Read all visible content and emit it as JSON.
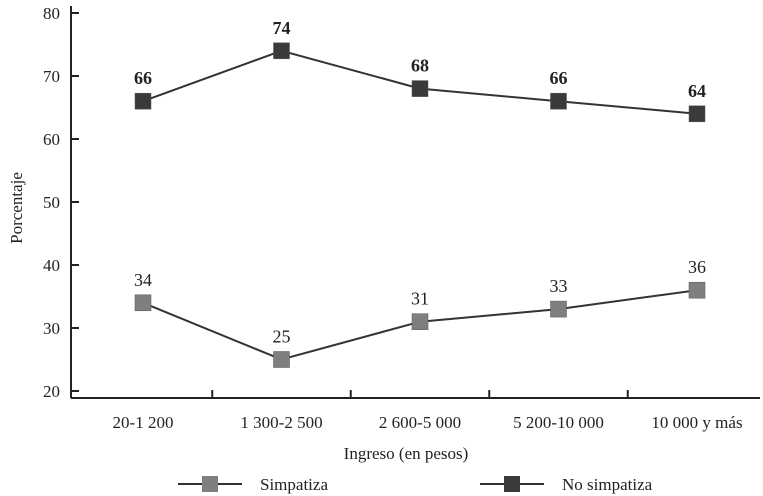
{
  "chart_data": {
    "type": "line",
    "xlabel": "Ingreso (en pesos)",
    "ylabel": "Porcentaje",
    "categories": [
      "20-1 200",
      "1 300-2 500",
      "2 600-5 000",
      "5 200-10 000",
      "10 000 y más"
    ],
    "ylim": [
      20,
      80
    ],
    "yticks": [
      20,
      30,
      40,
      50,
      60,
      70,
      80
    ],
    "grid": false,
    "legend_position": "bottom",
    "series": [
      {
        "name": "Simpatiza",
        "values": [
          34,
          25,
          31,
          33,
          36
        ],
        "color": "#7f7f7f"
      },
      {
        "name": "No simpatiza",
        "values": [
          66,
          74,
          68,
          66,
          64
        ],
        "color": "#3a3a3a"
      }
    ]
  }
}
